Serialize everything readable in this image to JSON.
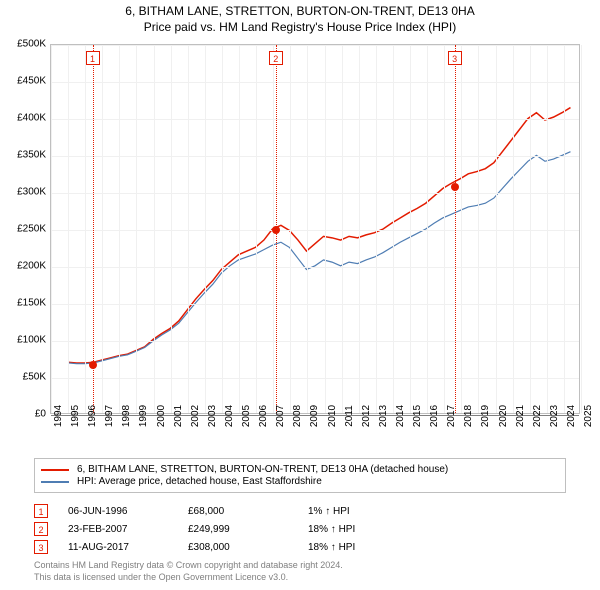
{
  "title": {
    "line1": "6, BITHAM LANE, STRETTON, BURTON-ON-TRENT, DE13 0HA",
    "line2": "Price paid vs. HM Land Registry's House Price Index (HPI)"
  },
  "chart": {
    "type": "line",
    "x_labels": [
      "1994",
      "1995",
      "1996",
      "1997",
      "1998",
      "1999",
      "2000",
      "2001",
      "2002",
      "2003",
      "2004",
      "2005",
      "2006",
      "2007",
      "2008",
      "2009",
      "2010",
      "2011",
      "2012",
      "2013",
      "2014",
      "2015",
      "2016",
      "2017",
      "2018",
      "2019",
      "2020",
      "2021",
      "2022",
      "2023",
      "2024",
      "2025"
    ],
    "ylim": [
      0,
      500000
    ],
    "ytick_step": 50000,
    "ytick_labels": [
      "£0",
      "£50K",
      "£100K",
      "£150K",
      "£200K",
      "£250K",
      "£300K",
      "£350K",
      "£400K",
      "£450K",
      "£500K"
    ],
    "grid_color": "#f0f0f0",
    "zero_line_color": "#808080",
    "border_color": "#bfbfbf",
    "background_color": "#ffffff",
    "series": [
      {
        "name": "property",
        "color": "#e31b00",
        "width": 1.5,
        "x": [
          1995.0,
          1995.5,
          1996.0,
          1996.5,
          1997.0,
          1997.5,
          1998.0,
          1998.5,
          1999.0,
          1999.5,
          2000.0,
          2000.5,
          2001.0,
          2001.5,
          2002.0,
          2002.5,
          2003.0,
          2003.5,
          2004.0,
          2004.5,
          2005.0,
          2005.5,
          2006.0,
          2006.5,
          2007.0,
          2007.5,
          2008.0,
          2008.5,
          2009.0,
          2009.5,
          2010.0,
          2010.5,
          2011.0,
          2011.5,
          2012.0,
          2012.5,
          2013.0,
          2013.5,
          2014.0,
          2014.5,
          2015.0,
          2015.5,
          2016.0,
          2016.5,
          2017.0,
          2017.5,
          2018.0,
          2018.5,
          2019.0,
          2019.5,
          2020.0,
          2020.5,
          2021.0,
          2021.5,
          2022.0,
          2022.5,
          2023.0,
          2023.5,
          2024.0,
          2024.5
        ],
        "y": [
          69000,
          68000,
          68000,
          69000,
          72000,
          75000,
          78000,
          80000,
          85000,
          90000,
          100000,
          108000,
          115000,
          125000,
          140000,
          155000,
          168000,
          180000,
          195000,
          205000,
          215000,
          220000,
          225000,
          235000,
          250000,
          255000,
          248000,
          235000,
          220000,
          230000,
          240000,
          238000,
          235000,
          240000,
          238000,
          242000,
          245000,
          250000,
          258000,
          265000,
          272000,
          278000,
          285000,
          295000,
          305000,
          312000,
          318000,
          325000,
          328000,
          332000,
          340000,
          355000,
          370000,
          385000,
          400000,
          408000,
          398000,
          402000,
          408000,
          415000
        ]
      },
      {
        "name": "hpi",
        "color": "#4f7db3",
        "width": 1.2,
        "x": [
          1995.0,
          1995.5,
          1996.0,
          1996.5,
          1997.0,
          1997.5,
          1998.0,
          1998.5,
          1999.0,
          1999.5,
          2000.0,
          2000.5,
          2001.0,
          2001.5,
          2002.0,
          2002.5,
          2003.0,
          2003.5,
          2004.0,
          2004.5,
          2005.0,
          2005.5,
          2006.0,
          2006.5,
          2007.0,
          2007.5,
          2008.0,
          2008.5,
          2009.0,
          2009.5,
          2010.0,
          2010.5,
          2011.0,
          2011.5,
          2012.0,
          2012.5,
          2013.0,
          2013.5,
          2014.0,
          2014.5,
          2015.0,
          2015.5,
          2016.0,
          2016.5,
          2017.0,
          2017.5,
          2018.0,
          2018.5,
          2019.0,
          2019.5,
          2020.0,
          2020.5,
          2021.0,
          2021.5,
          2022.0,
          2022.5,
          2023.0,
          2023.5,
          2024.0,
          2024.5
        ],
        "y": [
          68000,
          67000,
          67000,
          68000,
          71000,
          74000,
          77000,
          79000,
          84000,
          89000,
          98000,
          106000,
          113000,
          122000,
          136000,
          150000,
          163000,
          175000,
          190000,
          200000,
          208000,
          212000,
          216000,
          222000,
          228000,
          232000,
          225000,
          210000,
          195000,
          200000,
          208000,
          205000,
          200000,
          205000,
          203000,
          208000,
          212000,
          218000,
          225000,
          232000,
          238000,
          244000,
          250000,
          258000,
          265000,
          270000,
          275000,
          280000,
          282000,
          285000,
          292000,
          305000,
          318000,
          330000,
          342000,
          350000,
          342000,
          345000,
          350000,
          355000
        ]
      }
    ],
    "markers": [
      {
        "n": "1",
        "x_year": 1996.43,
        "y_value": 68000
      },
      {
        "n": "2",
        "x_year": 2007.15,
        "y_value": 249999
      },
      {
        "n": "3",
        "x_year": 2017.61,
        "y_value": 308000
      }
    ]
  },
  "legend": {
    "items": [
      {
        "color": "#e31b00",
        "label": "6, BITHAM LANE, STRETTON, BURTON-ON-TRENT, DE13 0HA (detached house)"
      },
      {
        "color": "#4f7db3",
        "label": "HPI: Average price, detached house, East Staffordshire"
      }
    ]
  },
  "sales": [
    {
      "n": "1",
      "date": "06-JUN-1996",
      "price": "£68,000",
      "pct": "1% ↑ HPI"
    },
    {
      "n": "2",
      "date": "23-FEB-2007",
      "price": "£249,999",
      "pct": "18% ↑ HPI"
    },
    {
      "n": "3",
      "date": "11-AUG-2017",
      "price": "£308,000",
      "pct": "18% ↑ HPI"
    }
  ],
  "footer": {
    "line1": "Contains HM Land Registry data © Crown copyright and database right 2024.",
    "line2": "This data is licensed under the Open Government Licence v3.0."
  }
}
